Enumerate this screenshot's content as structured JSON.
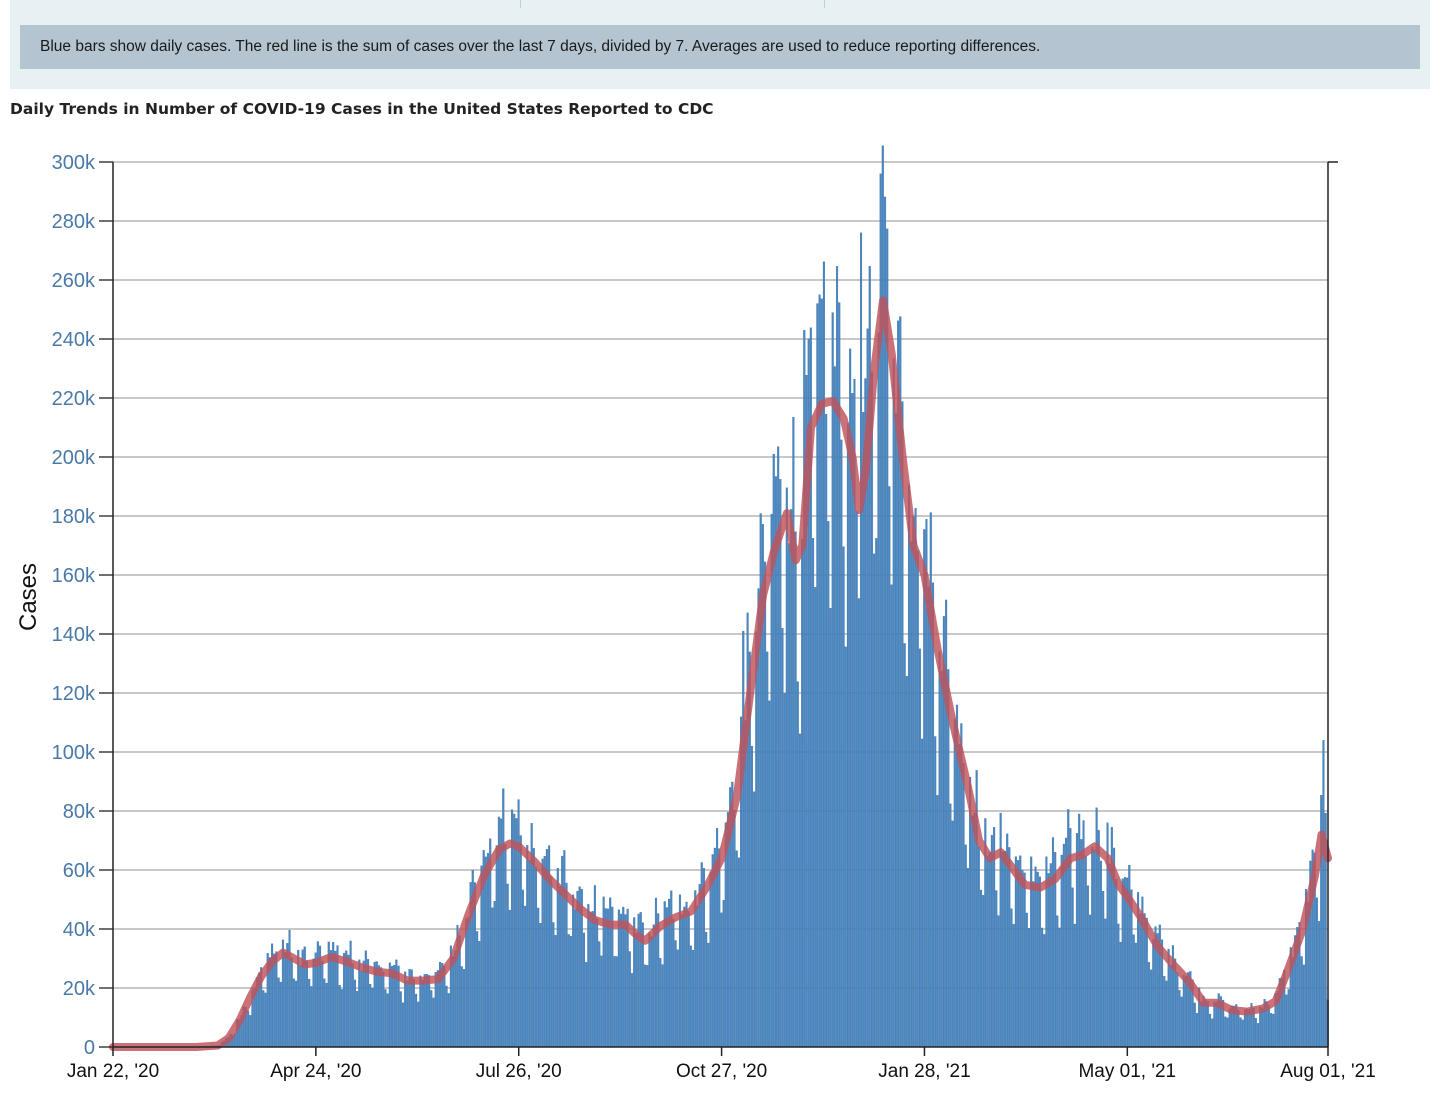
{
  "info_text": "Blue bars show daily cases. The red line is the sum of cases over the last 7 days, divided by 7. Averages are used to reduce reporting differences.",
  "chart_data": {
    "type": "bar",
    "title": "Daily Trends in Number of COVID-19 Cases in the United States Reported to CDC",
    "xlabel": "",
    "ylabel": "Cases",
    "ylim": [
      0,
      300000
    ],
    "yticks": [
      0,
      20000,
      40000,
      60000,
      80000,
      100000,
      120000,
      140000,
      160000,
      180000,
      200000,
      220000,
      240000,
      260000,
      280000,
      300000
    ],
    "ytick_labels": [
      "0",
      "20k",
      "40k",
      "60k",
      "80k",
      "100k",
      "120k",
      "140k",
      "160k",
      "180k",
      "200k",
      "220k",
      "240k",
      "260k",
      "280k",
      "300k"
    ],
    "x_start": "2020-01-22",
    "x_end": "2021-08-01",
    "xtick_labels": [
      "Jan 22, '20",
      "Apr 24, '20",
      "Jul 26, '20",
      "Oct 27, '20",
      "Jan 28, '21",
      "May 01, '21",
      "Aug 01, '21"
    ],
    "xtick_dates": [
      "2020-01-22",
      "2020-04-24",
      "2020-07-26",
      "2020-10-27",
      "2021-01-28",
      "2021-05-01",
      "2021-08-01"
    ],
    "grid": true,
    "bar_color": "#4a86c0",
    "line_color": "#c0535a",
    "series": [
      {
        "kind": "line",
        "description": "7-day average (approximate, read from chart)",
        "points": [
          [
            "2020-01-22",
            0
          ],
          [
            "2020-02-29",
            0
          ],
          [
            "2020-03-10",
            500
          ],
          [
            "2020-03-15",
            3000
          ],
          [
            "2020-03-20",
            9000
          ],
          [
            "2020-03-25",
            17000
          ],
          [
            "2020-03-30",
            24000
          ],
          [
            "2020-04-04",
            29000
          ],
          [
            "2020-04-09",
            32000
          ],
          [
            "2020-04-14",
            30000
          ],
          [
            "2020-04-19",
            28000
          ],
          [
            "2020-04-24",
            28500
          ],
          [
            "2020-05-01",
            30500
          ],
          [
            "2020-05-08",
            29000
          ],
          [
            "2020-05-15",
            27000
          ],
          [
            "2020-05-22",
            25500
          ],
          [
            "2020-05-29",
            25000
          ],
          [
            "2020-06-05",
            22500
          ],
          [
            "2020-06-12",
            22500
          ],
          [
            "2020-06-19",
            23000
          ],
          [
            "2020-06-26",
            30000
          ],
          [
            "2020-07-03",
            45000
          ],
          [
            "2020-07-10",
            58000
          ],
          [
            "2020-07-17",
            67000
          ],
          [
            "2020-07-22",
            69000
          ],
          [
            "2020-07-26",
            68000
          ],
          [
            "2020-08-02",
            63000
          ],
          [
            "2020-08-09",
            57000
          ],
          [
            "2020-08-16",
            52000
          ],
          [
            "2020-08-23",
            47000
          ],
          [
            "2020-08-30",
            43000
          ],
          [
            "2020-09-06",
            41500
          ],
          [
            "2020-09-13",
            41500
          ],
          [
            "2020-09-18",
            38000
          ],
          [
            "2020-09-22",
            36000
          ],
          [
            "2020-09-29",
            41000
          ],
          [
            "2020-10-06",
            44000
          ],
          [
            "2020-10-13",
            46000
          ],
          [
            "2020-10-20",
            54000
          ],
          [
            "2020-10-27",
            64000
          ],
          [
            "2020-11-03",
            85000
          ],
          [
            "2020-11-10",
            125000
          ],
          [
            "2020-11-15",
            153000
          ],
          [
            "2020-11-20",
            168000
          ],
          [
            "2020-11-26",
            181000
          ],
          [
            "2020-11-30",
            165000
          ],
          [
            "2020-12-03",
            170000
          ],
          [
            "2020-12-07",
            210000
          ],
          [
            "2020-12-12",
            218000
          ],
          [
            "2020-12-17",
            219000
          ],
          [
            "2020-12-22",
            213000
          ],
          [
            "2020-12-26",
            200000
          ],
          [
            "2020-12-29",
            182000
          ],
          [
            "2021-01-01",
            195000
          ],
          [
            "2021-01-05",
            230000
          ],
          [
            "2021-01-09",
            253000
          ],
          [
            "2021-01-13",
            235000
          ],
          [
            "2021-01-18",
            200000
          ],
          [
            "2021-01-23",
            170000
          ],
          [
            "2021-01-28",
            160000
          ],
          [
            "2021-02-03",
            135000
          ],
          [
            "2021-02-10",
            110000
          ],
          [
            "2021-02-17",
            88000
          ],
          [
            "2021-02-22",
            70000
          ],
          [
            "2021-02-27",
            64000
          ],
          [
            "2021-03-04",
            66000
          ],
          [
            "2021-03-10",
            60000
          ],
          [
            "2021-03-15",
            55000
          ],
          [
            "2021-03-22",
            54000
          ],
          [
            "2021-03-29",
            57000
          ],
          [
            "2021-04-05",
            64000
          ],
          [
            "2021-04-10",
            65000
          ],
          [
            "2021-04-16",
            68000
          ],
          [
            "2021-04-22",
            64000
          ],
          [
            "2021-04-27",
            55000
          ],
          [
            "2021-05-01",
            51000
          ],
          [
            "2021-05-08",
            43000
          ],
          [
            "2021-05-15",
            34000
          ],
          [
            "2021-05-22",
            28000
          ],
          [
            "2021-05-29",
            22500
          ],
          [
            "2021-06-05",
            15000
          ],
          [
            "2021-06-11",
            15000
          ],
          [
            "2021-06-18",
            12500
          ],
          [
            "2021-06-25",
            12000
          ],
          [
            "2021-07-02",
            13000
          ],
          [
            "2021-07-08",
            15500
          ],
          [
            "2021-07-13",
            25000
          ],
          [
            "2021-07-20",
            39000
          ],
          [
            "2021-07-26",
            58000
          ],
          [
            "2021-07-29",
            72000
          ],
          [
            "2021-08-01",
            64000
          ]
        ]
      }
    ],
    "daily_peak_values": [
      [
        "2020-04-04",
        35000
      ],
      [
        "2020-07-17",
        78000
      ],
      [
        "2020-07-24",
        79000
      ],
      [
        "2020-11-06",
        141000
      ],
      [
        "2020-11-20",
        201000
      ],
      [
        "2020-12-04",
        243000
      ],
      [
        "2020-12-11",
        255000
      ],
      [
        "2020-12-30",
        276000
      ],
      [
        "2021-01-08",
        296000
      ],
      [
        "2021-04-09",
        79000
      ],
      [
        "2021-07-30",
        104000
      ],
      [
        "2021-08-01",
        16000
      ]
    ]
  }
}
